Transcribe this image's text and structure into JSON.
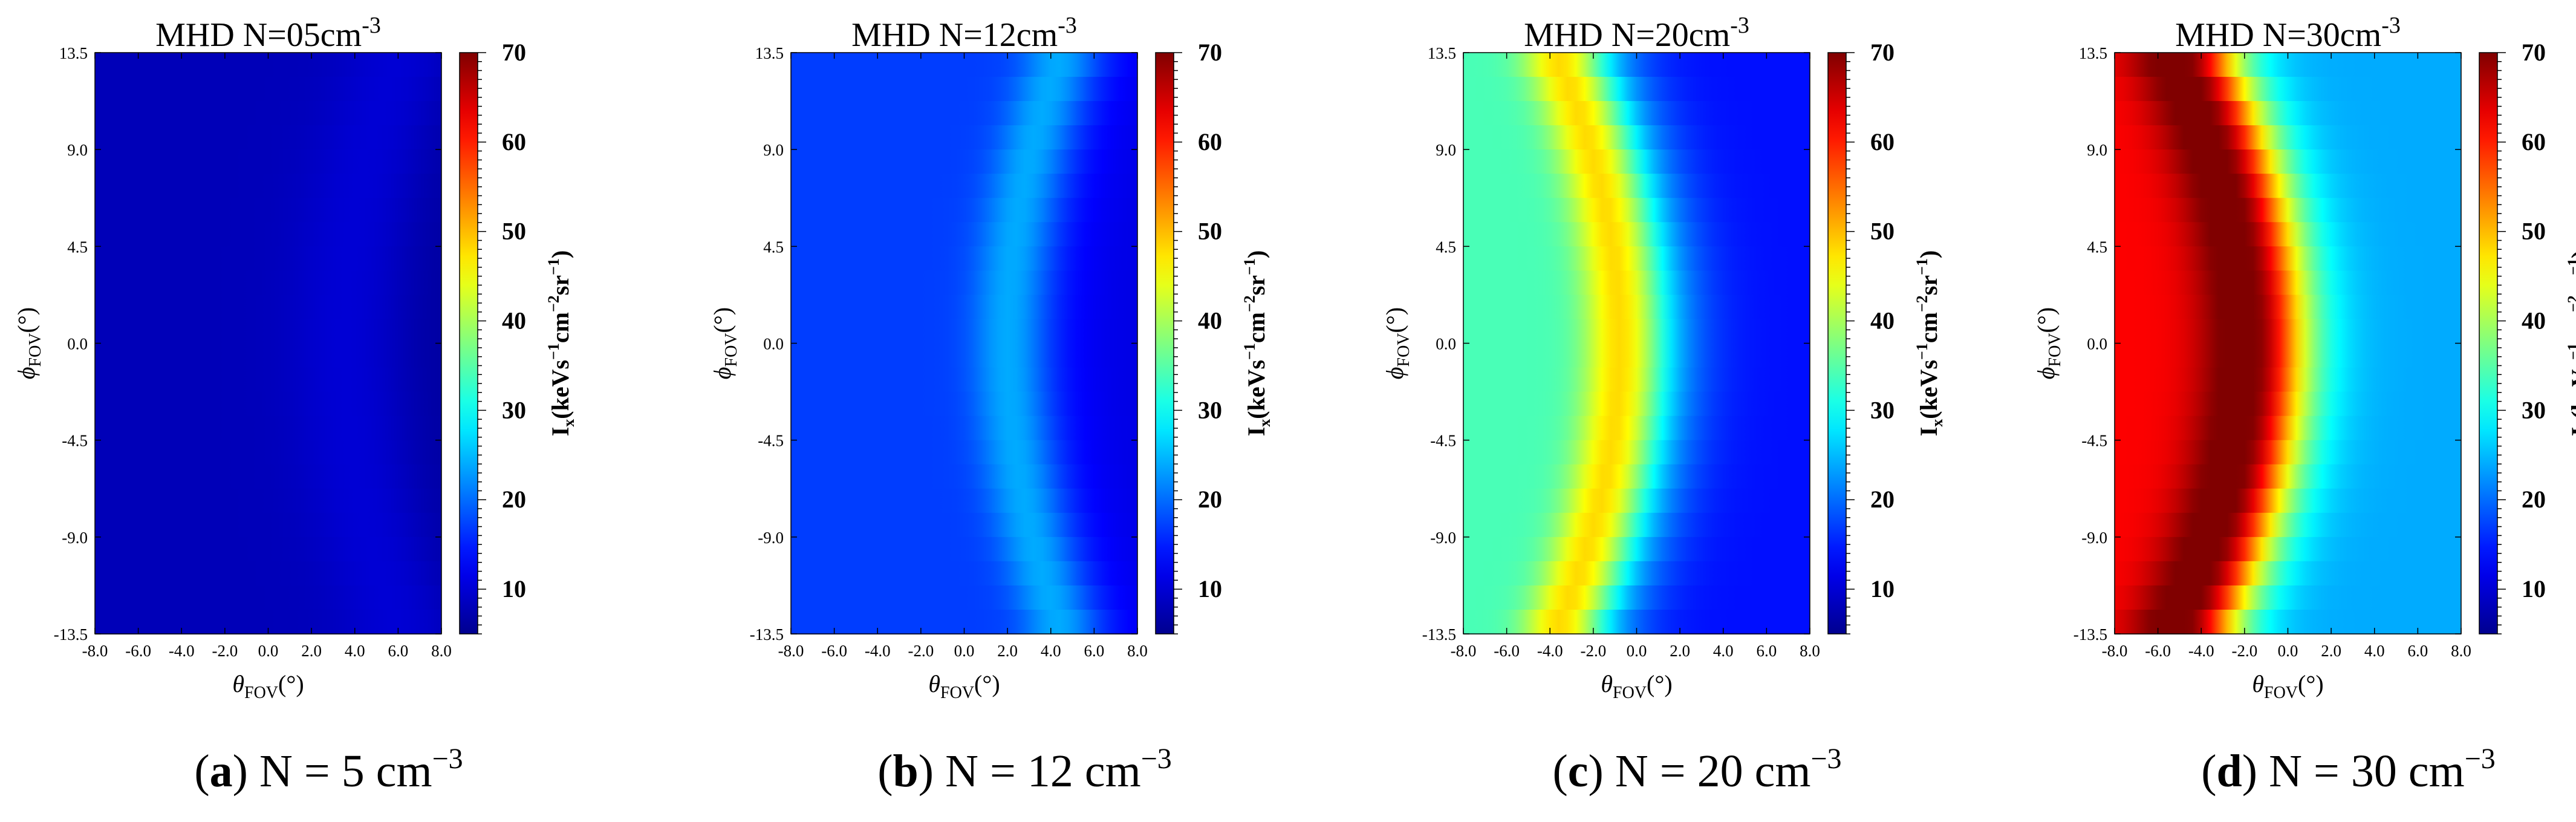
{
  "figure": {
    "colorbar": {
      "min": 5,
      "max": 70,
      "ticks": [
        "10",
        "20",
        "30",
        "40",
        "50",
        "60",
        "70"
      ],
      "label_main": "I",
      "label_sub": "x",
      "label_units": "(keVs",
      "label_sup1": "−1",
      "label_cm": "cm",
      "label_sup2": "−2",
      "label_sr": "sr",
      "label_sup3": "−1",
      "label_close": ")",
      "colormap": [
        "#00008f",
        "#0000ff",
        "#0080ff",
        "#00ffff",
        "#80ff80",
        "#ffff00",
        "#ff8000",
        "#ff0000",
        "#800000"
      ]
    },
    "x_axis": {
      "symbol": "θ",
      "subscript": "FOV",
      "unit": "(°)",
      "ticks": [
        "-8.0",
        "-6.0",
        "-4.0",
        "-2.0",
        "0.0",
        "2.0",
        "4.0",
        "6.0",
        "8.0"
      ],
      "range": [
        -8,
        8
      ]
    },
    "y_axis": {
      "symbol": "ϕ",
      "subscript": "FOV",
      "unit": "(°)",
      "ticks": [
        "13.5",
        "9.0",
        "4.5",
        "0.0",
        "-4.5",
        "-9.0",
        "-13.5"
      ],
      "range": [
        -13.5,
        13.5
      ]
    }
  },
  "chart_data": [
    {
      "type": "heatmap",
      "title_prefix": "MHD  N=",
      "title_value": "05",
      "title_unit": "cm",
      "title_exp": "-3",
      "caption_label": "(a)",
      "caption_text": " N = 5 cm",
      "caption_exp": "−3",
      "density_cm3": 5,
      "background_intensity": 8,
      "peak_intensity": 10,
      "ridge_theta_center": 3.5,
      "ridge_theta_edge": 6.0,
      "ridge_width": 2.5,
      "inner_intensity": 8,
      "outer_intensity": 6
    },
    {
      "type": "heatmap",
      "title_prefix": "MHD  N=",
      "title_value": "12",
      "title_unit": "cm",
      "title_exp": "-3",
      "caption_label": "(b)",
      "caption_text": " N = 12 cm",
      "caption_exp": "−3",
      "density_cm3": 12,
      "background_intensity": 17,
      "peak_intensity": 24,
      "ridge_theta_center": 2.0,
      "ridge_theta_edge": 4.5,
      "ridge_width": 1.6,
      "inner_intensity": 17,
      "outer_intensity": 11
    },
    {
      "type": "heatmap",
      "title_prefix": "MHD  N=",
      "title_value": "20",
      "title_unit": "cm",
      "title_exp": "-3",
      "caption_label": "(c)",
      "caption_text": " N = 20 cm",
      "caption_exp": "−3",
      "density_cm3": 20,
      "background_intensity": 34,
      "peak_intensity": 48,
      "ridge_theta_center": -0.8,
      "ridge_theta_edge": -3.8,
      "ridge_width": 1.6,
      "inner_intensity": 34,
      "outer_intensity": 14
    },
    {
      "type": "heatmap",
      "title_prefix": "MHD  N=",
      "title_value": "30",
      "title_unit": "cm",
      "title_exp": "-3",
      "caption_label": "(d)",
      "caption_text": " N = 30 cm",
      "caption_exp": "−3",
      "density_cm3": 30,
      "background_intensity": 62,
      "peak_intensity": 72,
      "ridge_theta_center": -2.2,
      "ridge_theta_edge": -5.6,
      "ridge_width": 2.0,
      "inner_intensity": 62,
      "outer_intensity": 24
    }
  ]
}
